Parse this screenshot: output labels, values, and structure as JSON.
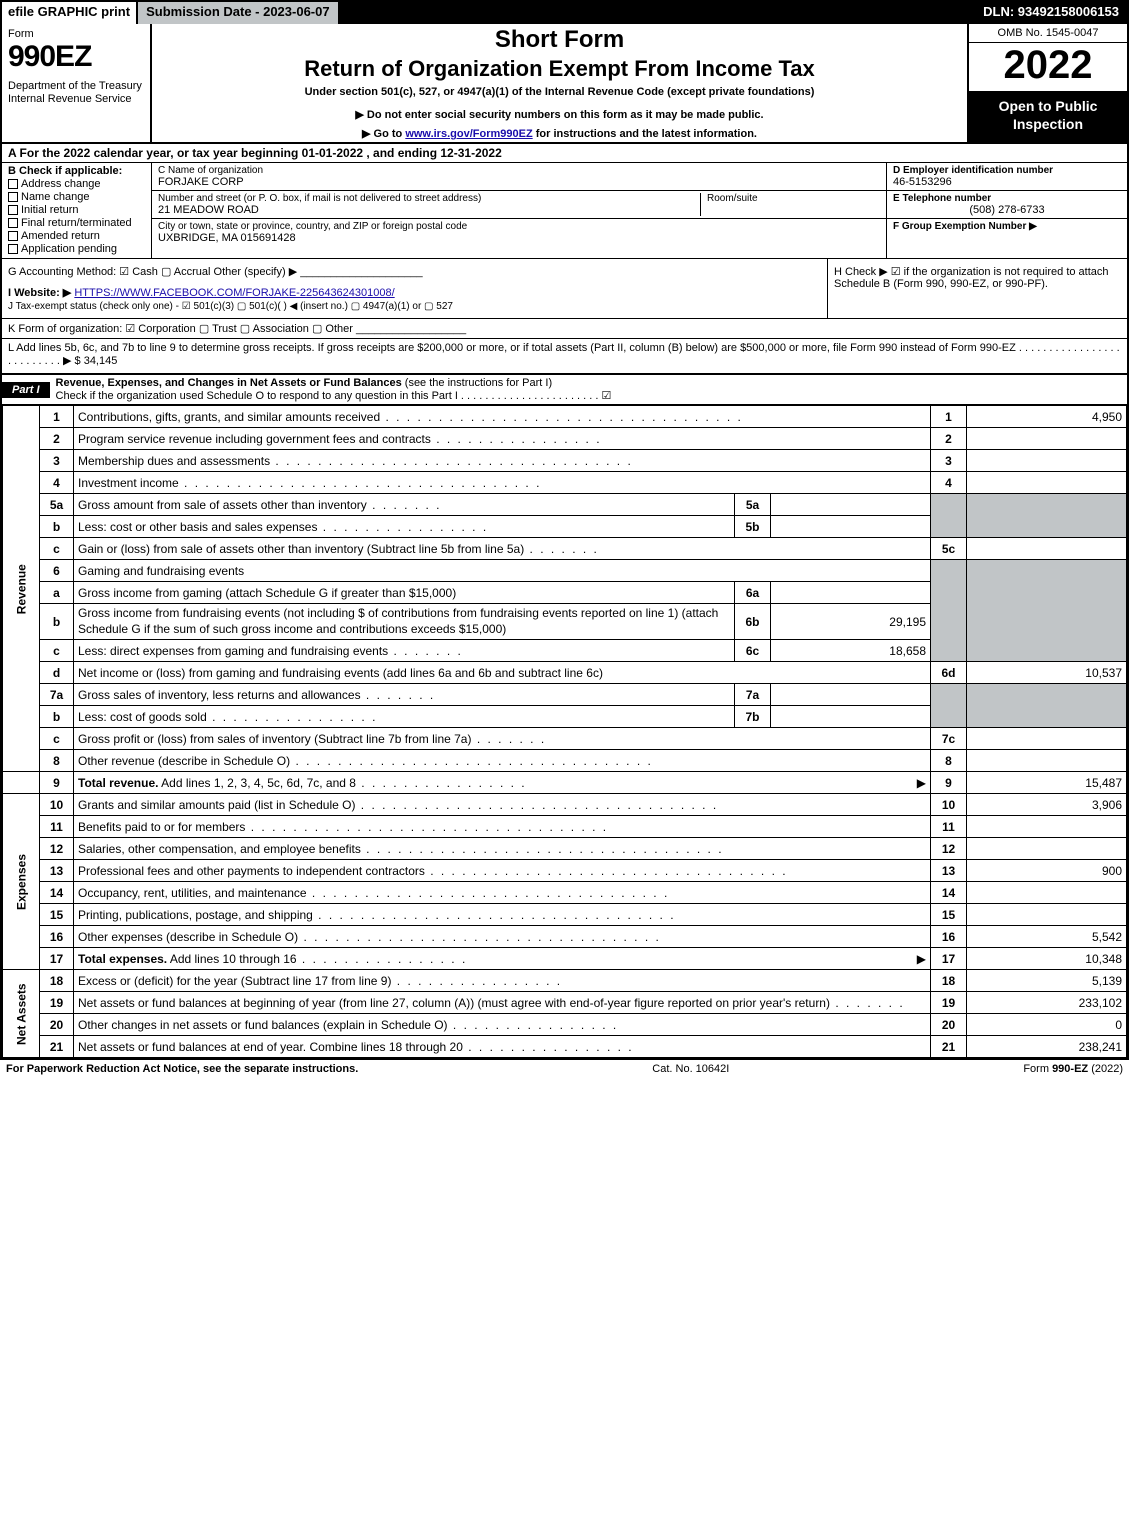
{
  "topbar": {
    "efile": "efile GRAPHIC print",
    "submission": "Submission Date - 2023-06-07",
    "dln": "DLN: 93492158006153"
  },
  "header": {
    "form_label": "Form",
    "form_number": "990EZ",
    "dept": "Department of the Treasury\nInternal Revenue Service",
    "short": "Short Form",
    "title": "Return of Organization Exempt From Income Tax",
    "sub1": "Under section 501(c), 527, or 4947(a)(1) of the Internal Revenue Code (except private foundations)",
    "sub2": "▶ Do not enter social security numbers on this form as it may be made public.",
    "sub3_pre": "▶ Go to ",
    "sub3_link": "www.irs.gov/Form990EZ",
    "sub3_post": " for instructions and the latest information.",
    "omb": "OMB No. 1545-0047",
    "year": "2022",
    "open": "Open to Public Inspection"
  },
  "rowA": "A  For the 2022 calendar year, or tax year beginning 01-01-2022 , and ending 12-31-2022",
  "B": {
    "label": "B  Check if applicable:",
    "opts": [
      "Address change",
      "Name change",
      "Initial return",
      "Final return/terminated",
      "Amended return",
      "Application pending"
    ]
  },
  "C": {
    "name_lbl": "C Name of organization",
    "name": "FORJAKE CORP",
    "addr_lbl": "Number and street (or P. O. box, if mail is not delivered to street address)",
    "addr": "21 MEADOW ROAD",
    "room_lbl": "Room/suite",
    "city_lbl": "City or town, state or province, country, and ZIP or foreign postal code",
    "city": "UXBRIDGE, MA  015691428"
  },
  "D": {
    "ein_lbl": "D Employer identification number",
    "ein": "46-5153296",
    "tel_lbl": "E Telephone number",
    "tel": "(508) 278-6733",
    "ge_lbl": "F Group Exemption Number   ▶"
  },
  "G": {
    "accounting": "G Accounting Method:   ☑ Cash   ▢ Accrual   Other (specify) ▶ ____________________",
    "website_lbl": "I Website: ▶",
    "website": "HTTPS://WWW.FACEBOOK.COM/FORJAKE-225643624301008/",
    "tax": "J Tax-exempt status (check only one) -  ☑ 501(c)(3)  ▢ 501(c)(  ) ◀ (insert no.)  ▢ 4947(a)(1) or  ▢ 527"
  },
  "H": "H   Check ▶  ☑  if the organization is not required to attach Schedule B (Form 990, 990-EZ, or 990-PF).",
  "K": "K Form of organization:   ☑ Corporation   ▢ Trust   ▢ Association   ▢ Other  __________________",
  "L": "L Add lines 5b, 6c, and 7b to line 9 to determine gross receipts. If gross receipts are $200,000 or more, or if total assets (Part II, column (B) below) are $500,000 or more, file Form 990 instead of Form 990-EZ  . . . . . . . . . . . . . . . . . . . . . . . . . .  ▶ $ 34,145",
  "partI": {
    "badge": "Part I",
    "title": "Revenue, Expenses, and Changes in Net Assets or Fund Balances",
    "note": " (see the instructions for Part I)",
    "check": "Check if the organization used Schedule O to respond to any question in this Part I . . . . . . . . . . . . . . . . . . . . . . .  ☑"
  },
  "vtabs": {
    "rev": "Revenue",
    "exp": "Expenses",
    "net": "Net Assets"
  },
  "rows": {
    "r1": {
      "n": "1",
      "t": "Contributions, gifts, grants, and similar amounts received",
      "rn": "1",
      "rv": "4,950"
    },
    "r2": {
      "n": "2",
      "t": "Program service revenue including government fees and contracts",
      "rn": "2",
      "rv": ""
    },
    "r3": {
      "n": "3",
      "t": "Membership dues and assessments",
      "rn": "3",
      "rv": ""
    },
    "r4": {
      "n": "4",
      "t": "Investment income",
      "rn": "4",
      "rv": ""
    },
    "r5a": {
      "n": "5a",
      "t": "Gross amount from sale of assets other than inventory",
      "sl": "5a",
      "sv": ""
    },
    "r5b": {
      "n": "b",
      "t": "Less: cost or other basis and sales expenses",
      "sl": "5b",
      "sv": ""
    },
    "r5c": {
      "n": "c",
      "t": "Gain or (loss) from sale of assets other than inventory (Subtract line 5b from line 5a)",
      "rn": "5c",
      "rv": ""
    },
    "r6": {
      "n": "6",
      "t": "Gaming and fundraising events"
    },
    "r6a": {
      "n": "a",
      "t": "Gross income from gaming (attach Schedule G if greater than $15,000)",
      "sl": "6a",
      "sv": ""
    },
    "r6b": {
      "n": "b",
      "t": "Gross income from fundraising events (not including $                  of contributions from fundraising events reported on line 1) (attach Schedule G if the sum of such gross income and contributions exceeds $15,000)",
      "sl": "6b",
      "sv": "29,195"
    },
    "r6c": {
      "n": "c",
      "t": "Less: direct expenses from gaming and fundraising events",
      "sl": "6c",
      "sv": "18,658"
    },
    "r6d": {
      "n": "d",
      "t": "Net income or (loss) from gaming and fundraising events (add lines 6a and 6b and subtract line 6c)",
      "rn": "6d",
      "rv": "10,537"
    },
    "r7a": {
      "n": "7a",
      "t": "Gross sales of inventory, less returns and allowances",
      "sl": "7a",
      "sv": ""
    },
    "r7b": {
      "n": "b",
      "t": "Less: cost of goods sold",
      "sl": "7b",
      "sv": ""
    },
    "r7c": {
      "n": "c",
      "t": "Gross profit or (loss) from sales of inventory (Subtract line 7b from line 7a)",
      "rn": "7c",
      "rv": ""
    },
    "r8": {
      "n": "8",
      "t": "Other revenue (describe in Schedule O)",
      "rn": "8",
      "rv": ""
    },
    "r9": {
      "n": "9",
      "t": "Total revenue. Add lines 1, 2, 3, 4, 5c, 6d, 7c, and 8",
      "rn": "9",
      "rv": "15,487"
    },
    "r10": {
      "n": "10",
      "t": "Grants and similar amounts paid (list in Schedule O)",
      "rn": "10",
      "rv": "3,906"
    },
    "r11": {
      "n": "11",
      "t": "Benefits paid to or for members",
      "rn": "11",
      "rv": ""
    },
    "r12": {
      "n": "12",
      "t": "Salaries, other compensation, and employee benefits",
      "rn": "12",
      "rv": ""
    },
    "r13": {
      "n": "13",
      "t": "Professional fees and other payments to independent contractors",
      "rn": "13",
      "rv": "900"
    },
    "r14": {
      "n": "14",
      "t": "Occupancy, rent, utilities, and maintenance",
      "rn": "14",
      "rv": ""
    },
    "r15": {
      "n": "15",
      "t": "Printing, publications, postage, and shipping",
      "rn": "15",
      "rv": ""
    },
    "r16": {
      "n": "16",
      "t": "Other expenses (describe in Schedule O)",
      "rn": "16",
      "rv": "5,542"
    },
    "r17": {
      "n": "17",
      "t": "Total expenses. Add lines 10 through 16",
      "rn": "17",
      "rv": "10,348"
    },
    "r18": {
      "n": "18",
      "t": "Excess or (deficit) for the year (Subtract line 17 from line 9)",
      "rn": "18",
      "rv": "5,139"
    },
    "r19": {
      "n": "19",
      "t": "Net assets or fund balances at beginning of year (from line 27, column (A)) (must agree with end-of-year figure reported on prior year's return)",
      "rn": "19",
      "rv": "233,102"
    },
    "r20": {
      "n": "20",
      "t": "Other changes in net assets or fund balances (explain in Schedule O)",
      "rn": "20",
      "rv": "0"
    },
    "r21": {
      "n": "21",
      "t": "Net assets or fund balances at end of year. Combine lines 18 through 20",
      "rn": "21",
      "rv": "238,241"
    }
  },
  "footer": {
    "l": "For Paperwork Reduction Act Notice, see the separate instructions.",
    "c": "Cat. No. 10642I",
    "r_pre": "Form ",
    "r_b": "990-EZ",
    "r_post": " (2022)"
  }
}
